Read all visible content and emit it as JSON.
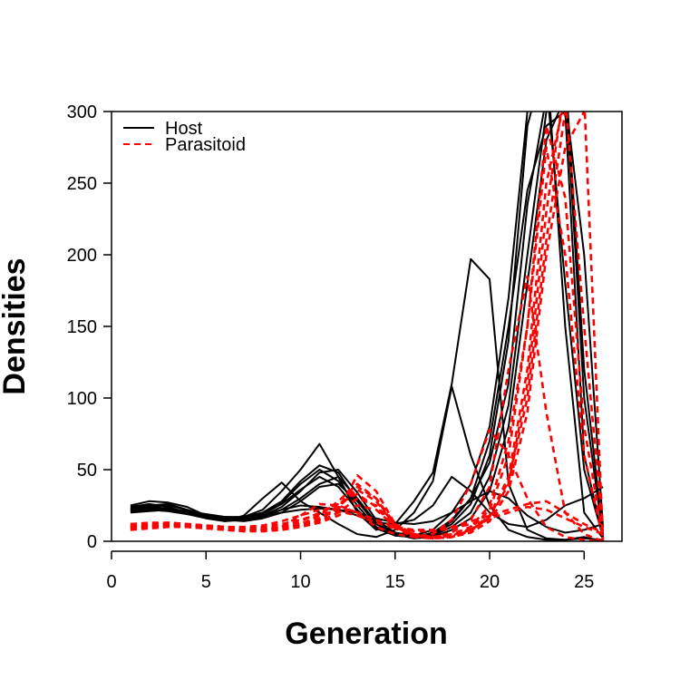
{
  "chart_data": {
    "type": "line",
    "title": "",
    "xlabel": "Generation",
    "ylabel": "Densities",
    "xlim": [
      0,
      27
    ],
    "ylim": [
      0,
      300
    ],
    "xticks": [
      0,
      5,
      10,
      15,
      20,
      25
    ],
    "yticks": [
      0,
      50,
      100,
      150,
      200,
      250,
      300
    ],
    "grid": false,
    "legend": {
      "position": "top-left",
      "entries": [
        {
          "label": "Host",
          "color": "#000000",
          "style": "solid"
        },
        {
          "label": "Parasitoid",
          "color": "#ff0000",
          "style": "dashed"
        }
      ]
    },
    "series": [
      {
        "group": "Host",
        "color": "#000000",
        "style": "solid",
        "x": [
          1,
          2,
          3,
          4,
          5,
          6,
          7,
          8,
          9,
          10,
          11,
          12,
          13,
          14,
          15,
          16,
          17,
          18,
          19,
          20,
          21,
          22,
          23,
          24,
          25,
          26
        ],
        "y": [
          25,
          28,
          27,
          24,
          18,
          14,
          18,
          30,
          41,
          28,
          20,
          12,
          5,
          3,
          8,
          20,
          42,
          108,
          60,
          25,
          8,
          3,
          1,
          1,
          3,
          0
        ]
      },
      {
        "group": "Host",
        "color": "#000000",
        "style": "solid",
        "x": [
          1,
          2,
          3,
          4,
          5,
          6,
          7,
          8,
          9,
          10,
          11,
          12,
          13,
          14,
          15,
          16,
          17,
          18,
          19,
          20,
          21,
          22,
          23,
          24,
          25,
          26
        ],
        "y": [
          22,
          24,
          25,
          22,
          18,
          15,
          17,
          22,
          35,
          50,
          68,
          45,
          20,
          8,
          12,
          28,
          48,
          110,
          197,
          183,
          40,
          8,
          2,
          1,
          2,
          1
        ]
      },
      {
        "group": "Host",
        "color": "#000000",
        "style": "solid",
        "x": [
          1,
          2,
          3,
          4,
          5,
          6,
          7,
          8,
          9,
          10,
          11,
          12,
          13,
          14,
          15,
          16,
          17,
          18,
          19,
          20,
          21,
          22,
          23,
          24,
          25,
          26
        ],
        "y": [
          24,
          26,
          24,
          20,
          17,
          15,
          16,
          20,
          28,
          42,
          53,
          48,
          28,
          12,
          6,
          4,
          8,
          20,
          40,
          80,
          170,
          300,
          320,
          180,
          50,
          3
        ]
      },
      {
        "group": "Host",
        "color": "#000000",
        "style": "solid",
        "x": [
          1,
          2,
          3,
          4,
          5,
          6,
          7,
          8,
          9,
          10,
          11,
          12,
          13,
          14,
          15,
          16,
          17,
          18,
          19,
          20,
          21,
          22,
          23,
          24,
          25,
          26
        ],
        "y": [
          21,
          22,
          23,
          21,
          19,
          17,
          16,
          18,
          24,
          35,
          48,
          50,
          34,
          15,
          6,
          3,
          5,
          12,
          26,
          60,
          140,
          290,
          340,
          150,
          20,
          2
        ]
      },
      {
        "group": "Host",
        "color": "#000000",
        "style": "solid",
        "x": [
          1,
          2,
          3,
          4,
          5,
          6,
          7,
          8,
          9,
          10,
          11,
          12,
          13,
          14,
          15,
          16,
          17,
          18,
          19,
          20,
          21,
          22,
          23,
          24,
          25,
          26
        ],
        "y": [
          23,
          25,
          26,
          22,
          18,
          16,
          17,
          20,
          27,
          40,
          50,
          42,
          25,
          10,
          4,
          3,
          6,
          15,
          30,
          55,
          110,
          235,
          310,
          330,
          120,
          5
        ]
      },
      {
        "group": "Host",
        "color": "#000000",
        "style": "solid",
        "x": [
          1,
          2,
          3,
          4,
          5,
          6,
          7,
          8,
          9,
          10,
          11,
          12,
          13,
          14,
          15,
          16,
          17,
          18,
          19,
          20,
          21,
          22,
          23,
          24,
          25,
          26
        ],
        "y": [
          20,
          21,
          22,
          20,
          18,
          16,
          15,
          17,
          22,
          30,
          40,
          45,
          30,
          13,
          5,
          2,
          4,
          10,
          20,
          45,
          95,
          200,
          300,
          320,
          100,
          3
        ]
      },
      {
        "group": "Host",
        "color": "#000000",
        "style": "solid",
        "x": [
          1,
          2,
          3,
          4,
          5,
          6,
          7,
          8,
          9,
          10,
          11,
          12,
          13,
          14,
          15,
          16,
          17,
          18,
          19,
          20,
          21,
          22,
          23,
          24,
          25,
          26
        ],
        "y": [
          22,
          23,
          22,
          19,
          16,
          14,
          15,
          19,
          26,
          36,
          45,
          38,
          22,
          9,
          4,
          3,
          5,
          14,
          30,
          70,
          150,
          245,
          290,
          300,
          60,
          2
        ]
      },
      {
        "group": "Host",
        "color": "#000000",
        "style": "solid",
        "x": [
          1,
          2,
          3,
          4,
          5,
          6,
          7,
          8,
          9,
          10,
          11,
          12,
          13,
          14,
          15,
          16,
          17,
          18,
          19,
          20,
          21,
          22,
          23,
          24,
          25,
          26
        ],
        "y": [
          21,
          22,
          21,
          19,
          17,
          15,
          14,
          16,
          20,
          28,
          38,
          40,
          28,
          12,
          5,
          2,
          3,
          8,
          16,
          35,
          80,
          180,
          280,
          310,
          200,
          10
        ]
      },
      {
        "group": "Host",
        "color": "#000000",
        "style": "solid",
        "x": [
          1,
          2,
          3,
          4,
          5,
          6,
          7,
          8,
          9,
          10,
          11,
          12,
          13,
          14,
          15,
          16,
          17,
          18,
          19,
          20,
          21,
          22,
          23,
          24,
          25,
          26
        ],
        "y": [
          23,
          24,
          23,
          20,
          17,
          15,
          16,
          18,
          22,
          25,
          24,
          22,
          18,
          13,
          12,
          15,
          25,
          45,
          35,
          20,
          12,
          10,
          15,
          25,
          30,
          38
        ]
      },
      {
        "group": "Host",
        "color": "#000000",
        "style": "solid",
        "x": [
          1,
          2,
          3,
          4,
          5,
          6,
          7,
          8,
          9,
          10,
          11,
          12,
          13,
          14,
          15,
          16,
          17,
          18,
          19,
          20,
          21,
          22,
          23,
          24,
          25,
          26
        ],
        "y": [
          22,
          22,
          21,
          19,
          18,
          17,
          17,
          18,
          20,
          22,
          23,
          22,
          20,
          16,
          13,
          12,
          14,
          20,
          28,
          35,
          30,
          18,
          10,
          6,
          8,
          12
        ]
      },
      {
        "group": "Parasitoid",
        "color": "#ff0000",
        "style": "dashed",
        "x": [
          1,
          2,
          3,
          4,
          5,
          6,
          7,
          8,
          9,
          10,
          11,
          12,
          13,
          14,
          15,
          16,
          17,
          18,
          19,
          20,
          21,
          22,
          23,
          24,
          25,
          26
        ],
        "y": [
          10,
          11,
          12,
          11,
          9,
          8,
          7,
          8,
          10,
          18,
          26,
          25,
          20,
          10,
          5,
          3,
          5,
          15,
          40,
          78,
          60,
          30,
          10,
          3,
          1,
          0
        ]
      },
      {
        "group": "Parasitoid",
        "color": "#ff0000",
        "style": "dashed",
        "x": [
          1,
          2,
          3,
          4,
          5,
          6,
          7,
          8,
          9,
          10,
          11,
          12,
          13,
          14,
          15,
          16,
          17,
          18,
          19,
          20,
          21,
          22,
          23,
          24,
          25,
          26
        ],
        "y": [
          12,
          12,
          13,
          12,
          11,
          9,
          8,
          8,
          9,
          12,
          18,
          28,
          40,
          30,
          10,
          4,
          3,
          6,
          15,
          38,
          120,
          185,
          90,
          20,
          5,
          0
        ]
      },
      {
        "group": "Parasitoid",
        "color": "#ff0000",
        "style": "dashed",
        "x": [
          1,
          2,
          3,
          4,
          5,
          6,
          7,
          8,
          9,
          10,
          11,
          12,
          13,
          14,
          15,
          16,
          17,
          18,
          19,
          20,
          21,
          22,
          23,
          24,
          25,
          26
        ],
        "y": [
          9,
          10,
          11,
          11,
          10,
          9,
          8,
          8,
          9,
          11,
          15,
          25,
          38,
          30,
          12,
          5,
          3,
          5,
          10,
          25,
          70,
          150,
          275,
          200,
          60,
          2
        ]
      },
      {
        "group": "Parasitoid",
        "color": "#ff0000",
        "style": "dashed",
        "x": [
          1,
          2,
          3,
          4,
          5,
          6,
          7,
          8,
          9,
          10,
          11,
          12,
          13,
          14,
          15,
          16,
          17,
          18,
          19,
          20,
          21,
          22,
          23,
          24,
          25,
          26
        ],
        "y": [
          11,
          11,
          12,
          12,
          11,
          10,
          9,
          9,
          10,
          12,
          16,
          22,
          46,
          35,
          12,
          4,
          2,
          3,
          8,
          18,
          45,
          120,
          250,
          310,
          150,
          5
        ]
      },
      {
        "group": "Parasitoid",
        "color": "#ff0000",
        "style": "dashed",
        "x": [
          1,
          2,
          3,
          4,
          5,
          6,
          7,
          8,
          9,
          10,
          11,
          12,
          13,
          14,
          15,
          16,
          17,
          18,
          19,
          20,
          21,
          22,
          23,
          24,
          25,
          26
        ],
        "y": [
          10,
          10,
          11,
          11,
          10,
          9,
          8,
          7,
          8,
          10,
          14,
          20,
          30,
          25,
          10,
          4,
          2,
          3,
          6,
          14,
          35,
          90,
          200,
          275,
          300,
          320
        ]
      },
      {
        "group": "Parasitoid",
        "color": "#ff0000",
        "style": "dashed",
        "x": [
          1,
          2,
          3,
          4,
          5,
          6,
          7,
          8,
          9,
          10,
          11,
          12,
          13,
          14,
          15,
          16,
          17,
          18,
          19,
          20,
          21,
          22,
          23,
          24,
          25,
          26
        ],
        "y": [
          8,
          9,
          10,
          10,
          9,
          8,
          7,
          7,
          8,
          10,
          13,
          18,
          25,
          22,
          10,
          5,
          3,
          4,
          8,
          16,
          40,
          110,
          230,
          320,
          330,
          300
        ]
      },
      {
        "group": "Parasitoid",
        "color": "#ff0000",
        "style": "dashed",
        "x": [
          1,
          2,
          3,
          4,
          5,
          6,
          7,
          8,
          9,
          10,
          11,
          12,
          13,
          14,
          15,
          16,
          17,
          18,
          19,
          20,
          21,
          22,
          23,
          24,
          25,
          26
        ],
        "y": [
          12,
          13,
          13,
          12,
          11,
          10,
          9,
          9,
          10,
          14,
          20,
          26,
          33,
          24,
          9,
          3,
          2,
          4,
          9,
          22,
          60,
          150,
          290,
          240,
          80,
          3
        ]
      },
      {
        "group": "Parasitoid",
        "color": "#ff0000",
        "style": "dashed",
        "x": [
          1,
          2,
          3,
          4,
          5,
          6,
          7,
          8,
          9,
          10,
          11,
          12,
          13,
          14,
          15,
          16,
          17,
          18,
          19,
          20,
          21,
          22,
          23,
          24,
          25,
          26
        ],
        "y": [
          9,
          10,
          10,
          10,
          9,
          8,
          8,
          8,
          9,
          11,
          15,
          24,
          36,
          28,
          11,
          4,
          2,
          3,
          7,
          17,
          42,
          100,
          210,
          300,
          310,
          0
        ]
      },
      {
        "group": "Parasitoid",
        "color": "#ff0000",
        "style": "dashed",
        "x": [
          1,
          2,
          3,
          4,
          5,
          6,
          7,
          8,
          9,
          10,
          11,
          12,
          13,
          14,
          15,
          16,
          17,
          18,
          19,
          20,
          21,
          22,
          23,
          24,
          25,
          26
        ],
        "y": [
          10,
          10,
          11,
          11,
          11,
          10,
          10,
          11,
          14,
          18,
          22,
          24,
          20,
          15,
          10,
          8,
          8,
          10,
          14,
          18,
          22,
          26,
          28,
          20,
          12,
          6
        ]
      },
      {
        "group": "Parasitoid",
        "color": "#ff0000",
        "style": "dashed",
        "x": [
          1,
          2,
          3,
          4,
          5,
          6,
          7,
          8,
          9,
          10,
          11,
          12,
          13,
          14,
          15,
          16,
          17,
          18,
          19,
          20,
          21,
          22,
          23,
          24,
          25,
          26
        ],
        "y": [
          11,
          11,
          12,
          11,
          10,
          9,
          9,
          10,
          12,
          15,
          19,
          21,
          18,
          13,
          9,
          7,
          7,
          9,
          12,
          16,
          20,
          24,
          22,
          16,
          10,
          5
        ]
      }
    ]
  }
}
